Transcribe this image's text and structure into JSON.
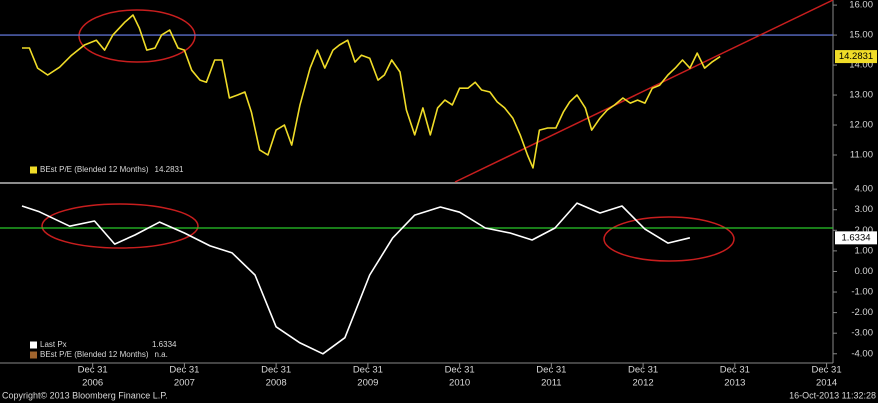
{
  "chart_data": [
    {
      "type": "line",
      "x": [
        2006.23,
        2006.31,
        2006.4,
        2006.51,
        2006.64,
        2006.77,
        2006.91,
        2007.04,
        2007.13,
        2007.22,
        2007.35,
        2007.44,
        2007.51,
        2007.59,
        2007.68,
        2007.75,
        2007.84,
        2007.93,
        2008.0,
        2008.08,
        2008.17,
        2008.24,
        2008.33,
        2008.41,
        2008.49,
        2008.58,
        2008.66,
        2008.73,
        2008.82,
        2008.91,
        2009.0,
        2009.09,
        2009.17,
        2009.26,
        2009.37,
        2009.45,
        2009.53,
        2009.62,
        2009.69,
        2009.78,
        2009.86,
        2009.93,
        2010.02,
        2010.11,
        2010.18,
        2010.26,
        2010.35,
        2010.42,
        2010.51,
        2010.6,
        2010.68,
        2010.76,
        2010.84,
        2010.92,
        2011.0,
        2011.09,
        2011.17,
        2011.24,
        2011.33,
        2011.41,
        2011.49,
        2011.58,
        2011.66,
        2011.74,
        2011.8,
        2011.87,
        2011.96,
        2012.05,
        2012.13,
        2012.2,
        2012.28,
        2012.37,
        2012.44,
        2012.53,
        2012.61,
        2012.69,
        2012.78,
        2012.86,
        2012.94,
        2013.02,
        2013.1,
        2013.18,
        2013.27,
        2013.35,
        2013.43,
        2013.51,
        2013.59,
        2013.67,
        2013.75,
        2013.84
      ],
      "series": [
        {
          "name": "BEst P/E (Blended 12 Months)",
          "color": "#f0dc28",
          "values": [
            14.57,
            14.57,
            13.9,
            13.67,
            13.93,
            14.33,
            14.67,
            14.83,
            14.5,
            15.0,
            15.43,
            15.67,
            15.23,
            14.5,
            14.57,
            15.0,
            15.17,
            14.57,
            14.5,
            13.83,
            13.5,
            13.43,
            14.17,
            14.17,
            12.9,
            13.0,
            13.1,
            12.43,
            11.17,
            11.0,
            11.83,
            12.0,
            11.33,
            12.67,
            13.9,
            14.5,
            13.9,
            14.5,
            14.67,
            14.83,
            14.1,
            14.33,
            14.23,
            13.5,
            13.67,
            14.17,
            13.77,
            12.5,
            11.67,
            12.57,
            11.67,
            12.57,
            12.83,
            12.67,
            13.23,
            13.23,
            13.43,
            13.17,
            13.1,
            12.77,
            12.57,
            12.23,
            11.67,
            11.0,
            10.57,
            11.83,
            11.9,
            11.9,
            12.43,
            12.77,
            13.0,
            12.57,
            11.83,
            12.23,
            12.5,
            12.67,
            12.9,
            12.73,
            12.83,
            12.73,
            13.23,
            13.33,
            13.67,
            13.9,
            14.17,
            13.9,
            14.4,
            13.9,
            14.1,
            14.2831
          ]
        }
      ],
      "hline": {
        "value": 15,
        "color": "#5a6ec8"
      },
      "trendline": {
        "x": [
          2010.95,
          2015.07
        ],
        "y": [
          10.1,
          16.17
        ],
        "color": "#c81e1e"
      },
      "xlim": [
        2005.99,
        2015.07
      ],
      "ylim": [
        10.1,
        16.17
      ],
      "yticks": [
        {
          "value": 11,
          "label": "11.00"
        },
        {
          "value": 12,
          "label": "12.00"
        },
        {
          "value": 13,
          "label": "13.00"
        },
        {
          "value": 14,
          "label": "14.00"
        },
        {
          "value": 15,
          "label": "15.00"
        },
        {
          "value": 16,
          "label": "16.00"
        }
      ]
    },
    {
      "type": "line",
      "x": [
        2006.23,
        2006.42,
        2006.75,
        2007.02,
        2007.24,
        2007.46,
        2007.73,
        2008.0,
        2008.28,
        2008.52,
        2008.77,
        2009.0,
        2009.26,
        2009.51,
        2009.75,
        2010.02,
        2010.27,
        2010.51,
        2010.79,
        2011.0,
        2011.28,
        2011.55,
        2011.79,
        2012.04,
        2012.28,
        2012.53,
        2012.77,
        2013.02,
        2013.27,
        2013.51
      ],
      "series": [
        {
          "name": "Last Px",
          "color": "#ffffff",
          "values": [
            3.18,
            2.9,
            2.2,
            2.45,
            1.33,
            1.77,
            2.4,
            1.87,
            1.24,
            0.9,
            -0.17,
            -2.69,
            -3.47,
            -4.0,
            -3.22,
            -0.17,
            1.62,
            2.74,
            3.13,
            2.88,
            2.11,
            1.87,
            1.53,
            2.11,
            3.32,
            2.84,
            3.18,
            2.06,
            1.38,
            1.6334
          ]
        },
        {
          "name": "BEst P/E (Blended 12 Months)",
          "color": "#a0642d",
          "status": "n.a."
        }
      ],
      "hline": {
        "value": 2.11,
        "color": "#28c828"
      },
      "xlim": [
        2005.99,
        2015.07
      ],
      "ylim": [
        -4.4,
        4.25
      ],
      "yticks": [
        {
          "value": 4,
          "label": "4.00"
        },
        {
          "value": 3,
          "label": "3.00"
        },
        {
          "value": 2,
          "label": "2.00"
        },
        {
          "value": 1,
          "label": "1.00"
        },
        {
          "value": 0,
          "label": "0.00"
        },
        {
          "value": -1,
          "label": "-1.00"
        },
        {
          "value": -2,
          "label": "-2.00"
        },
        {
          "value": -3,
          "label": "-3.00"
        },
        {
          "value": -4,
          "label": "-4.00"
        }
      ],
      "xticks": [
        {
          "value": 2007,
          "label": [
            "Dec 31",
            "2006"
          ]
        },
        {
          "value": 2008,
          "label": [
            "Dec 31",
            "2007"
          ]
        },
        {
          "value": 2009,
          "label": [
            "Dec 31",
            "2008"
          ]
        },
        {
          "value": 2010,
          "label": [
            "Dec 31",
            "2009"
          ]
        },
        {
          "value": 2011,
          "label": [
            "Dec 31",
            "2010"
          ]
        },
        {
          "value": 2012,
          "label": [
            "Dec 31",
            "2011"
          ]
        },
        {
          "value": 2013,
          "label": [
            "Dec 31",
            "2012"
          ]
        },
        {
          "value": 2014,
          "label": [
            "Dec 31",
            "2013"
          ]
        },
        {
          "value": 2015,
          "label": [
            "Dec 31",
            "2014"
          ]
        }
      ]
    }
  ],
  "footer": {
    "copyright": "Copyright© 2013 Bloomberg Finance L.P.",
    "timestamp": "16-Oct-2013 11:32:28"
  }
}
